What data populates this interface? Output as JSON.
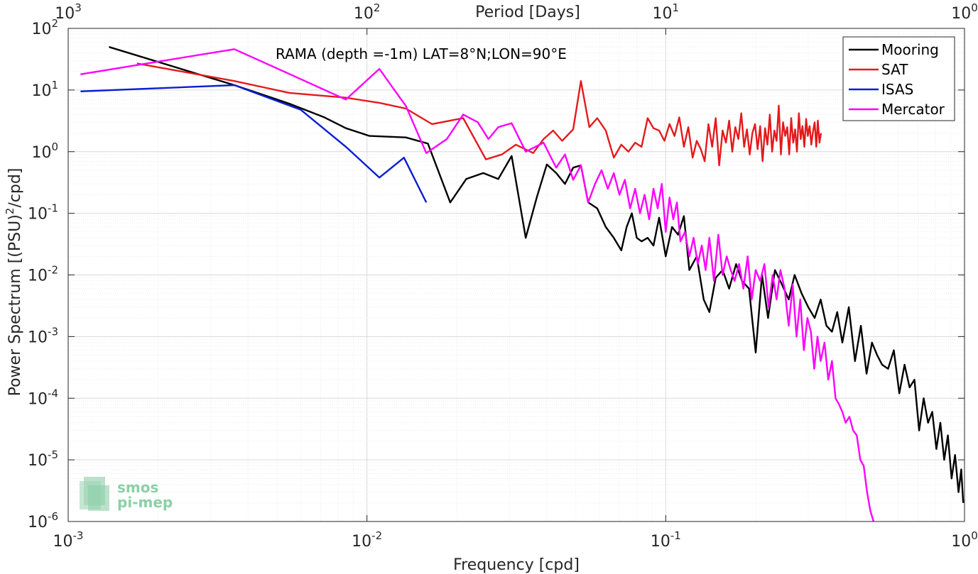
{
  "chart_data": {
    "type": "line",
    "title": "",
    "xlabel": "Frequency [cpd]",
    "ylabel": "Power Spectrum [(PSU)",
    "ylabel_sup": "2",
    "ylabel_tail": "/cpd]",
    "top_axis_label": "Period [Days]",
    "annotation": "RAMA (depth =-1m) LAT=8°N;LON=90°E",
    "x_scale": "log",
    "y_scale": "log",
    "xlim": [
      0.001,
      1
    ],
    "ylim": [
      1e-06,
      100
    ],
    "grid": true,
    "legend_position": "top-right",
    "x_ticks": [
      {
        "value": 0.001,
        "base": "10",
        "exp": "-3"
      },
      {
        "value": 0.01,
        "base": "10",
        "exp": "-2"
      },
      {
        "value": 0.1,
        "base": "10",
        "exp": "-1"
      },
      {
        "value": 1,
        "base": "10",
        "exp": "0"
      }
    ],
    "top_ticks": [
      {
        "value": 0.001,
        "base": "10",
        "exp": "3"
      },
      {
        "value": 0.01,
        "base": "10",
        "exp": "2"
      },
      {
        "value": 0.1,
        "base": "10",
        "exp": "1"
      },
      {
        "value": 1,
        "base": "10",
        "exp": "0"
      }
    ],
    "y_ticks": [
      {
        "value": 1e-06,
        "base": "10",
        "exp": "-6"
      },
      {
        "value": 1e-05,
        "base": "10",
        "exp": "-5"
      },
      {
        "value": 0.0001,
        "base": "10",
        "exp": "-4"
      },
      {
        "value": 0.001,
        "base": "10",
        "exp": "-3"
      },
      {
        "value": 0.01,
        "base": "10",
        "exp": "-2"
      },
      {
        "value": 0.1,
        "base": "10",
        "exp": "-1"
      },
      {
        "value": 1,
        "base": "10",
        "exp": "0"
      },
      {
        "value": 10,
        "base": "10",
        "exp": "1"
      },
      {
        "value": 100,
        "base": "10",
        "exp": "2"
      }
    ],
    "series": [
      {
        "name": "Mooring",
        "color": "#000000",
        "x": [
          0.00137,
          0.0036,
          0.0055,
          0.0072,
          0.0085,
          0.0102,
          0.0135,
          0.016,
          0.019,
          0.0215,
          0.0245,
          0.0275,
          0.0305,
          0.034,
          0.037,
          0.04,
          0.043,
          0.046,
          0.049,
          0.052,
          0.055,
          0.059,
          0.063,
          0.067,
          0.071,
          0.074,
          0.077,
          0.08,
          0.083,
          0.087,
          0.091,
          0.095,
          0.1,
          0.105,
          0.11,
          0.115,
          0.12,
          0.127,
          0.134,
          0.14,
          0.147,
          0.155,
          0.163,
          0.172,
          0.18,
          0.19,
          0.2,
          0.21,
          0.22,
          0.232,
          0.245,
          0.258,
          0.27,
          0.285,
          0.3,
          0.315,
          0.33,
          0.345,
          0.36,
          0.375,
          0.39,
          0.41,
          0.43,
          0.45,
          0.47,
          0.49,
          0.51,
          0.53,
          0.555,
          0.58,
          0.605,
          0.63,
          0.655,
          0.68,
          0.705,
          0.73,
          0.755,
          0.78,
          0.805,
          0.83,
          0.855,
          0.88,
          0.905,
          0.93,
          0.955,
          0.975,
          0.99
        ],
        "y": [
          50,
          12,
          6,
          3.6,
          2.4,
          1.8,
          1.7,
          1.35,
          0.15,
          0.36,
          0.45,
          0.36,
          0.85,
          0.04,
          0.18,
          0.62,
          0.45,
          0.3,
          0.55,
          0.6,
          0.15,
          0.12,
          0.06,
          0.04,
          0.025,
          0.06,
          0.1,
          0.04,
          0.035,
          0.04,
          0.03,
          0.085,
          0.02,
          0.06,
          0.045,
          0.09,
          0.012,
          0.02,
          0.004,
          0.0025,
          0.009,
          0.012,
          0.006,
          0.015,
          0.008,
          0.006,
          0.00055,
          0.01,
          0.002,
          0.012,
          0.007,
          0.004,
          0.01,
          0.005,
          0.003,
          0.002,
          0.004,
          0.0015,
          0.0012,
          0.0025,
          0.0008,
          0.003,
          0.0004,
          0.0015,
          0.00025,
          0.0008,
          0.0005,
          0.00035,
          0.0003,
          0.0006,
          0.00012,
          0.00035,
          0.00015,
          0.0002,
          3e-05,
          0.0001,
          4e-05,
          6e-05,
          1.5e-05,
          4e-05,
          1e-05,
          2.5e-05,
          5e-06,
          1.2e-05,
          3e-06,
          7e-06,
          2e-06
        ]
      },
      {
        "name": "SAT",
        "color": "#e41a1c",
        "x": [
          0.0017,
          0.0036,
          0.0055,
          0.0085,
          0.011,
          0.0135,
          0.0165,
          0.021,
          0.025,
          0.0283,
          0.0315,
          0.036,
          0.039,
          0.042,
          0.045,
          0.049,
          0.052,
          0.0555,
          0.059,
          0.063,
          0.067,
          0.071,
          0.075,
          0.079,
          0.083,
          0.087,
          0.091,
          0.095,
          0.099,
          0.103,
          0.107,
          0.111,
          0.115,
          0.119,
          0.123,
          0.127,
          0.131,
          0.135,
          0.139,
          0.143,
          0.147,
          0.151,
          0.155,
          0.159,
          0.163,
          0.167,
          0.171,
          0.175,
          0.179,
          0.183,
          0.187,
          0.191,
          0.195,
          0.199,
          0.203,
          0.207,
          0.211,
          0.215,
          0.219,
          0.223,
          0.227,
          0.231,
          0.235,
          0.239,
          0.243,
          0.247,
          0.251,
          0.255,
          0.259,
          0.263,
          0.267,
          0.271,
          0.275,
          0.279,
          0.283,
          0.287,
          0.291,
          0.295,
          0.299,
          0.303,
          0.307,
          0.311,
          0.315,
          0.319,
          0.323,
          0.327,
          0.331
        ],
        "y": [
          27,
          14,
          9,
          7.5,
          6.2,
          5,
          2.8,
          3.5,
          0.75,
          0.9,
          1.3,
          0.95,
          1.6,
          2.2,
          1.5,
          2.3,
          14,
          2.5,
          3.5,
          2.2,
          0.8,
          1.3,
          1,
          1.4,
          1.2,
          3.5,
          2.4,
          2.2,
          1.5,
          2.8,
          1.8,
          3.6,
          1.2,
          2.5,
          0.8,
          1.5,
          1.1,
          0.7,
          2.8,
          1.2,
          3.5,
          0.6,
          2.2,
          1.4,
          3.2,
          1.0,
          2.5,
          1.6,
          4.2,
          1.2,
          2.3,
          0.9,
          2.0,
          2.8,
          1.1,
          2.6,
          0.7,
          2.4,
          1.3,
          4.0,
          1.0,
          2.2,
          1.5,
          5.6,
          0.9,
          3.0,
          1.8,
          2.5,
          0.9,
          3.5,
          1.4,
          2.3,
          1.0,
          4.2,
          1.6,
          2.6,
          1.2,
          3.4,
          1.8,
          2.6,
          1.3,
          2.1,
          3.0,
          1.2,
          3.2,
          1.4,
          2.0
        ]
      },
      {
        "name": "ISAS",
        "color": "#0a1ed2",
        "x": [
          0.0011,
          0.0036,
          0.006,
          0.0085,
          0.011,
          0.0133,
          0.0158
        ],
        "y": [
          9.5,
          12,
          4.8,
          1.2,
          0.38,
          0.8,
          0.15
        ]
      },
      {
        "name": "Mercator",
        "color": "#ff00ff",
        "x": [
          0.0011,
          0.0036,
          0.0085,
          0.011,
          0.0135,
          0.0158,
          0.0185,
          0.021,
          0.0235,
          0.0255,
          0.0275,
          0.0305,
          0.034,
          0.039,
          0.043,
          0.046,
          0.049,
          0.052,
          0.055,
          0.058,
          0.061,
          0.064,
          0.067,
          0.07,
          0.073,
          0.076,
          0.079,
          0.082,
          0.085,
          0.088,
          0.091,
          0.094,
          0.097,
          0.1,
          0.103,
          0.106,
          0.109,
          0.112,
          0.116,
          0.12,
          0.124,
          0.128,
          0.132,
          0.136,
          0.14,
          0.145,
          0.15,
          0.155,
          0.16,
          0.165,
          0.17,
          0.176,
          0.182,
          0.188,
          0.194,
          0.2,
          0.207,
          0.214,
          0.221,
          0.228,
          0.235,
          0.242,
          0.25,
          0.258,
          0.266,
          0.274,
          0.282,
          0.29,
          0.298,
          0.306,
          0.314,
          0.322,
          0.33,
          0.34,
          0.35,
          0.36,
          0.37,
          0.38,
          0.39,
          0.4,
          0.412,
          0.424,
          0.436,
          0.448,
          0.46,
          0.472,
          0.484,
          0.496
        ],
        "y": [
          18,
          46,
          7,
          22,
          5.5,
          0.95,
          1.6,
          4,
          3,
          1.6,
          2.5,
          2.9,
          1.0,
          1.4,
          0.55,
          0.9,
          0.35,
          0.6,
          0.15,
          0.3,
          0.5,
          0.25,
          0.45,
          0.2,
          0.35,
          0.12,
          0.25,
          0.1,
          0.2,
          0.08,
          0.25,
          0.12,
          0.3,
          0.05,
          0.18,
          0.08,
          0.15,
          0.035,
          0.05,
          0.02,
          0.04,
          0.015,
          0.03,
          0.012,
          0.04,
          0.008,
          0.045,
          0.01,
          0.02,
          0.012,
          0.008,
          0.015,
          0.006,
          0.02,
          0.004,
          0.012,
          0.008,
          0.015,
          0.003,
          0.01,
          0.004,
          0.012,
          0.006,
          0.0015,
          0.007,
          0.001,
          0.004,
          0.0006,
          0.002,
          0.0012,
          0.0003,
          0.001,
          0.0004,
          0.0008,
          0.0002,
          0.0004,
          0.0001,
          8e-05,
          6e-05,
          4e-05,
          5e-05,
          3e-05,
          2.5e-05,
          1e-05,
          8e-06,
          3e-06,
          1.5e-06,
          1e-06
        ]
      }
    ]
  },
  "logo": {
    "line1": "smos",
    "line2": "pi-mep"
  }
}
